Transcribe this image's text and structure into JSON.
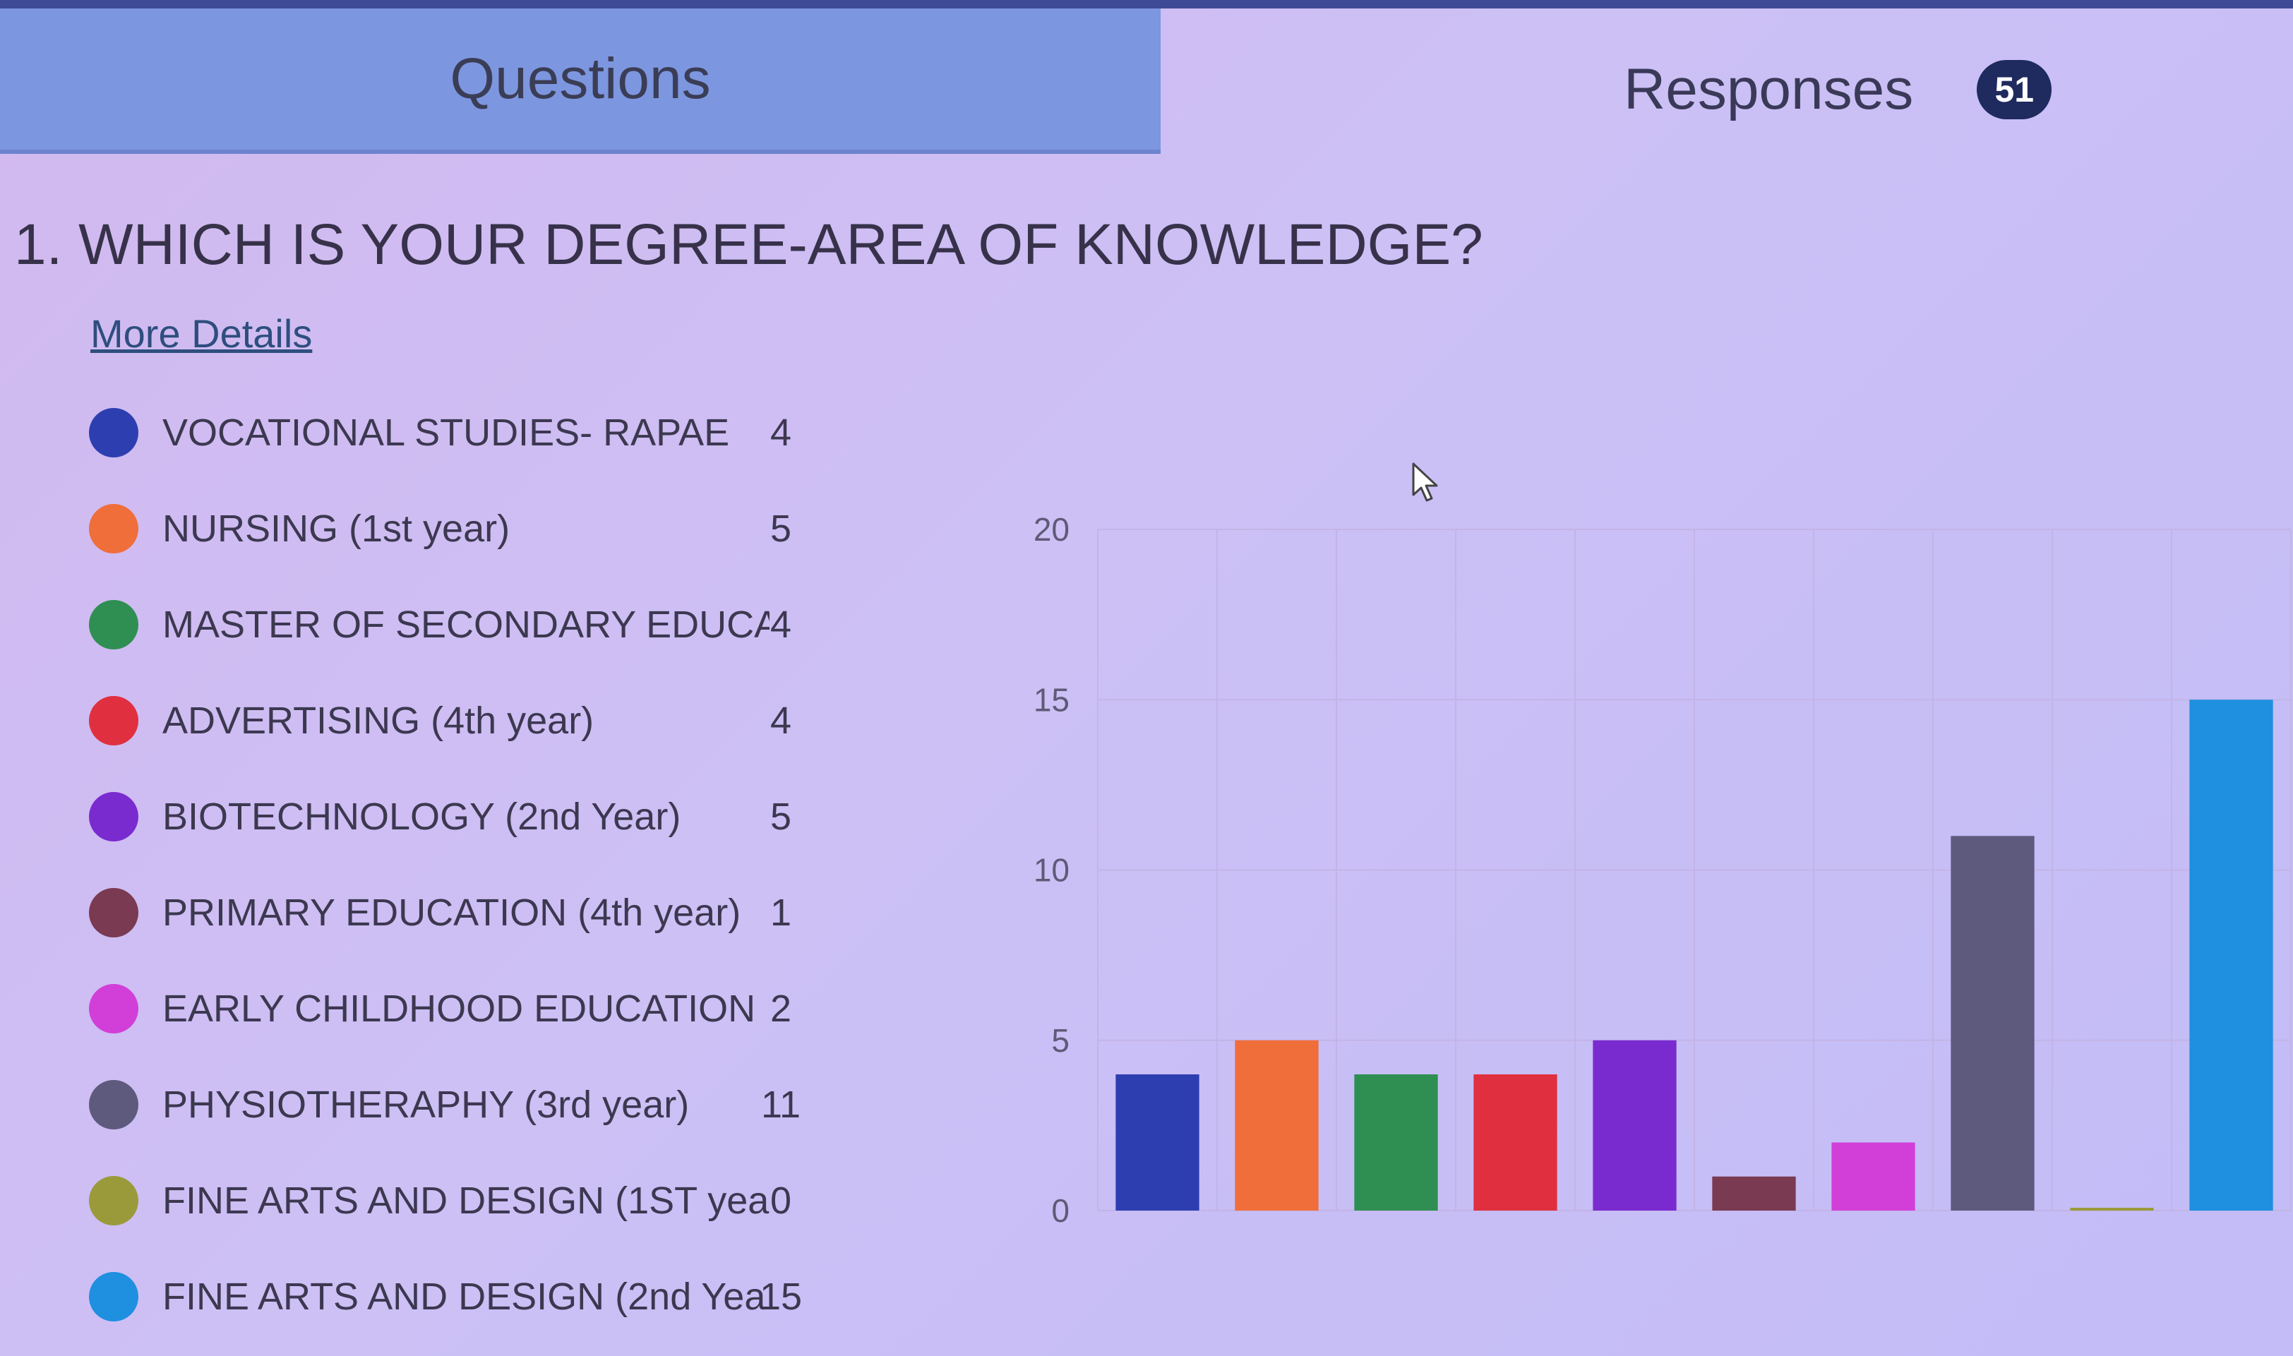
{
  "tabs": {
    "questions_label": "Questions",
    "responses_label": "Responses",
    "responses_count": "51"
  },
  "question": {
    "title": "1. WHICH IS YOUR DEGREE-AREA OF KNOWLEDGE?",
    "more_details": "More Details"
  },
  "legend": [
    {
      "label": "VOCATIONAL STUDIES- RAPAE",
      "count": "4",
      "color": "#2d3fb0"
    },
    {
      "label": "NURSING (1st year)",
      "count": "5",
      "color": "#ef6e3a"
    },
    {
      "label": "MASTER OF SECONDARY EDUCA",
      "count": "4",
      "color": "#2f8f52"
    },
    {
      "label": "ADVERTISING (4th year)",
      "count": "4",
      "color": "#e0303f"
    },
    {
      "label": "BIOTECHNOLOGY (2nd Year)",
      "count": "5",
      "color": "#7a2bd0"
    },
    {
      "label": "PRIMARY EDUCATION (4th year)",
      "count": "1",
      "color": "#7a3a52"
    },
    {
      "label": "EARLY CHILDHOOD EDUCATION",
      "count": "2",
      "color": "#d23fd8"
    },
    {
      "label": "PHYSIOTHERAPHY (3rd year)",
      "count": "11",
      "color": "#5e5a7e"
    },
    {
      "label": "FINE ARTS AND DESIGN (1ST yea",
      "count": "0",
      "color": "#9a9a3a"
    },
    {
      "label": "FINE ARTS AND DESIGN (2nd Yea",
      "count": "15",
      "color": "#1f8fe0"
    }
  ],
  "chart_data": {
    "type": "bar",
    "categories": [
      "VOCATIONAL STUDIES- RAPAE",
      "NURSING (1st year)",
      "MASTER OF SECONDARY EDUCA",
      "ADVERTISING (4th year)",
      "BIOTECHNOLOGY (2nd Year)",
      "PRIMARY EDUCATION (4th year)",
      "EARLY CHILDHOOD EDUCATION",
      "PHYSIOTHERAPHY (3rd year)",
      "FINE ARTS AND DESIGN (1ST yea",
      "FINE ARTS AND DESIGN (2nd Yea"
    ],
    "values": [
      4,
      5,
      4,
      4,
      5,
      1,
      2,
      11,
      0,
      15
    ],
    "colors": [
      "#2d3fb0",
      "#ef6e3a",
      "#2f8f52",
      "#e0303f",
      "#7a2bd0",
      "#7a3a52",
      "#d23fd8",
      "#5e5a7e",
      "#9a9a3a",
      "#1f8fe0"
    ],
    "ylim": [
      0,
      20
    ],
    "yticks": [
      0,
      5,
      10,
      15,
      20
    ],
    "grid": true
  }
}
